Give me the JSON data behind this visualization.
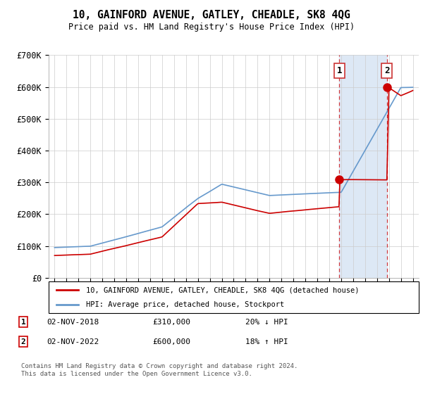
{
  "title": "10, GAINFORD AVENUE, GATLEY, CHEADLE, SK8 4QG",
  "subtitle": "Price paid vs. HM Land Registry's House Price Index (HPI)",
  "ylim": [
    0,
    700000
  ],
  "yticks": [
    0,
    100000,
    200000,
    300000,
    400000,
    500000,
    600000,
    700000
  ],
  "ytick_labels": [
    "£0",
    "£100K",
    "£200K",
    "£300K",
    "£400K",
    "£500K",
    "£600K",
    "£700K"
  ],
  "hpi_color": "#6699cc",
  "price_color": "#cc0000",
  "shade_color": "#dde8f5",
  "sale1_year": 2018.84,
  "sale1_price": 310000,
  "sale2_year": 2022.84,
  "sale2_price": 600000,
  "legend_label1": "10, GAINFORD AVENUE, GATLEY, CHEADLE, SK8 4QG (detached house)",
  "legend_label2": "HPI: Average price, detached house, Stockport",
  "note1_date": "02-NOV-2018",
  "note1_price": "£310,000",
  "note1_change": "20% ↓ HPI",
  "note2_date": "02-NOV-2022",
  "note2_price": "£600,000",
  "note2_change": "18% ↑ HPI",
  "footer": "Contains HM Land Registry data © Crown copyright and database right 2024.\nThis data is licensed under the Open Government Licence v3.0."
}
